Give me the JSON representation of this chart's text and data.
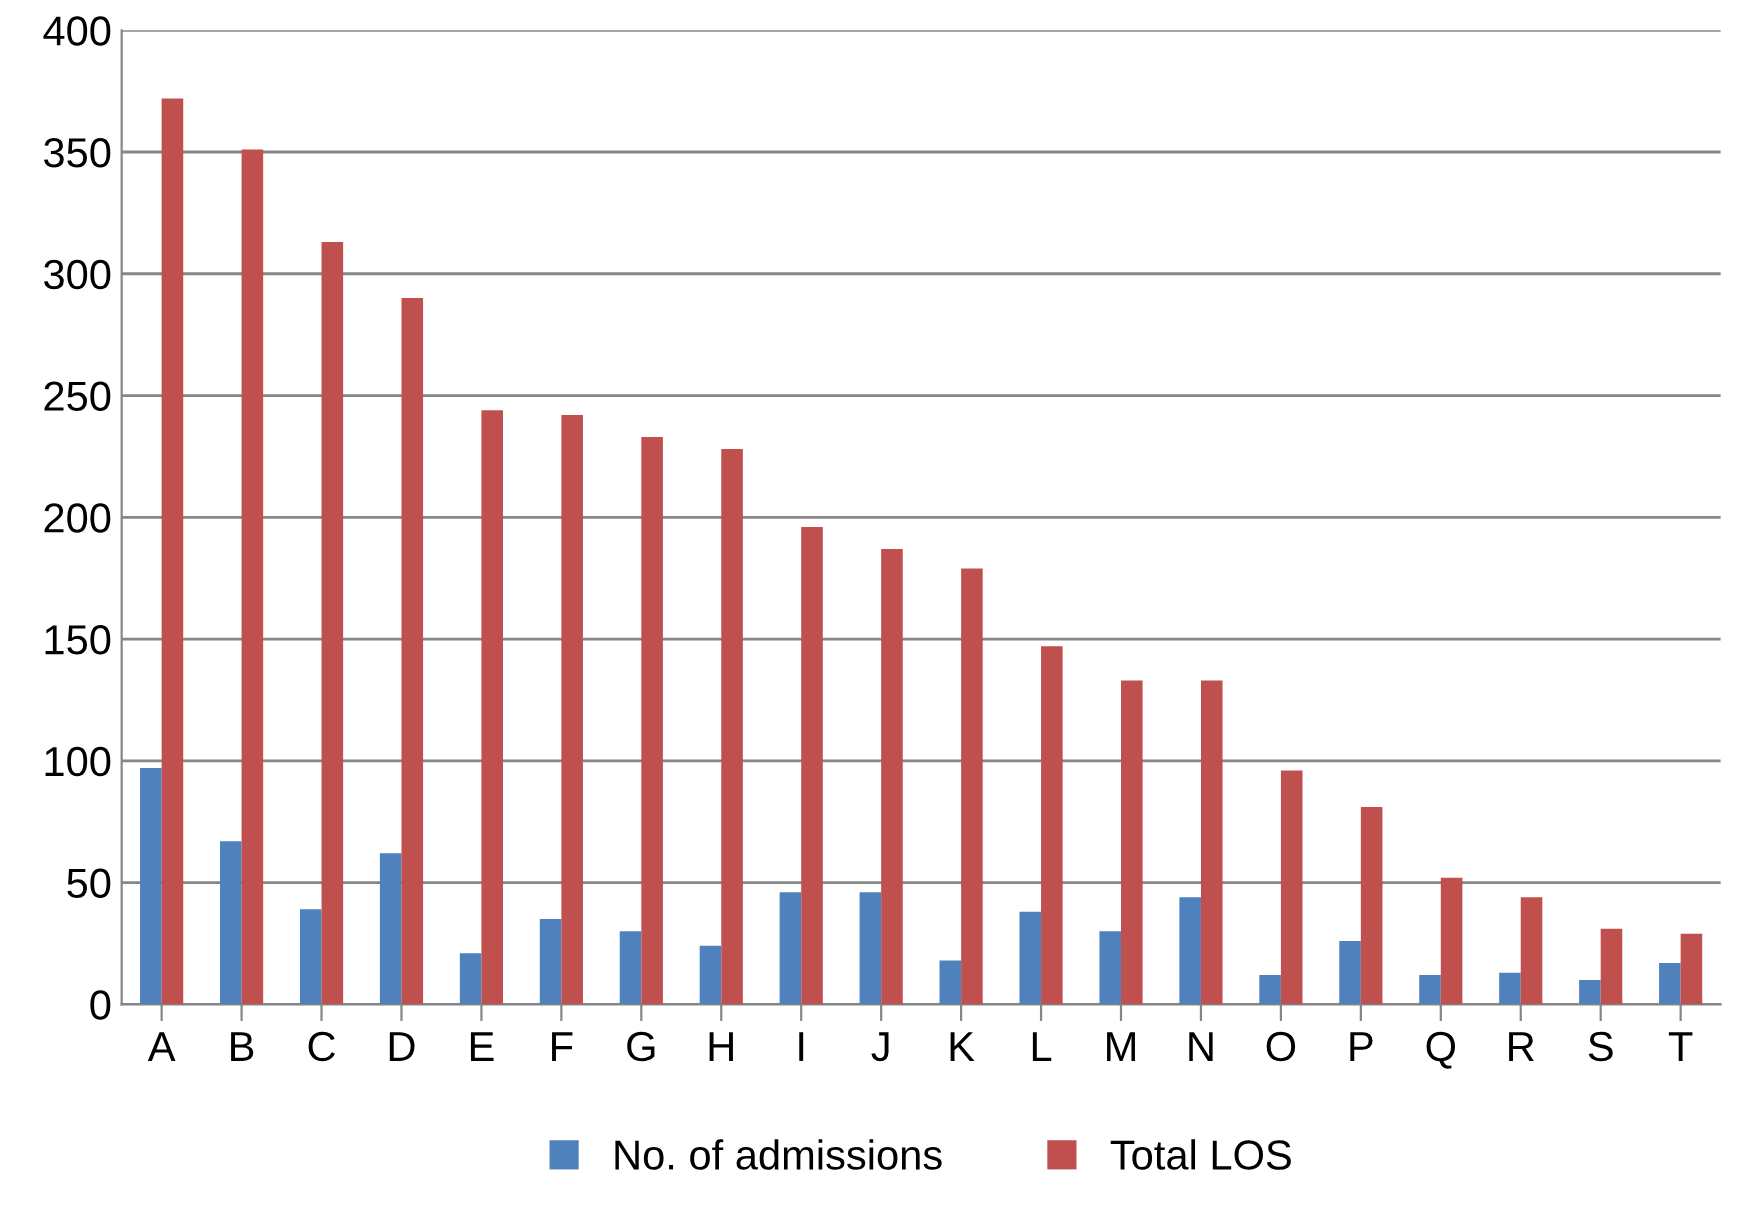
{
  "chart_data": {
    "type": "bar",
    "categories": [
      "A",
      "B",
      "C",
      "D",
      "E",
      "F",
      "G",
      "H",
      "I",
      "J",
      "K",
      "L",
      "M",
      "N",
      "O",
      "P",
      "Q",
      "R",
      "S",
      "T"
    ],
    "series": [
      {
        "name": "No. of admissions",
        "color": "#4f81bd",
        "values": [
          97,
          67,
          39,
          62,
          21,
          35,
          30,
          24,
          46,
          46,
          18,
          38,
          30,
          44,
          12,
          26,
          12,
          13,
          10,
          17
        ]
      },
      {
        "name": "Total LOS",
        "color": "#c0504d",
        "values": [
          372,
          351,
          313,
          290,
          244,
          242,
          233,
          228,
          196,
          187,
          179,
          147,
          133,
          133,
          96,
          81,
          52,
          44,
          31,
          29
        ]
      }
    ],
    "ylim": [
      0,
      400
    ],
    "yticks": [
      0,
      50,
      100,
      150,
      200,
      250,
      300,
      350,
      400
    ],
    "grid": "y",
    "legend": "bottom"
  }
}
